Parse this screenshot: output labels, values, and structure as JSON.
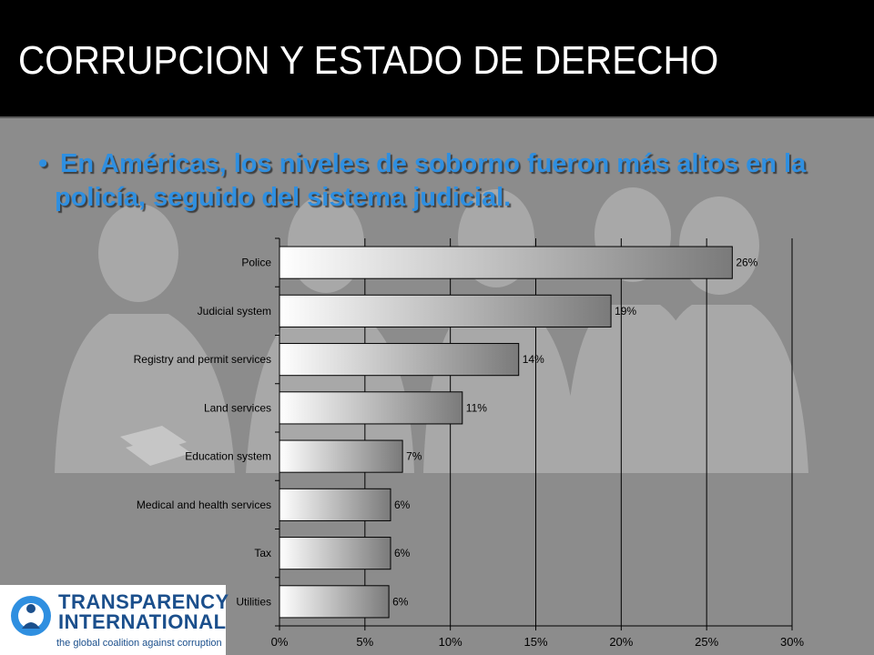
{
  "slide": {
    "title": "CORRUPCION Y ESTADO DE DERECHO",
    "bullet_symbol": "•",
    "bullet_text": "En Américas, los niveles de soborno fueron más altos en la policía, seguido del sistema judicial."
  },
  "logo": {
    "line1": "TRANSPARENCY",
    "line2": "INTERNATIONAL",
    "tagline": "the global coalition against corruption"
  },
  "colors": {
    "title_bar": "#000000",
    "background": "#8c8c8c",
    "bullet_text": "#2f8fe0",
    "bar_light": "#ffffff",
    "bar_dark": "#7a7a7a",
    "logo_blue": "#1b4f8c"
  },
  "chart_data": {
    "type": "bar",
    "orientation": "horizontal",
    "categories": [
      "Police",
      "Judicial system",
      "Registry and permit services",
      "Land services",
      "Education system",
      "Medical and health services",
      "Tax",
      "Utilities"
    ],
    "values": [
      26.5,
      19.4,
      14.0,
      10.7,
      7.2,
      6.5,
      6.5,
      6.4
    ],
    "data_labels": [
      "26%",
      "19%",
      "14%",
      "11%",
      "7%",
      "6%",
      "6%",
      "6%"
    ],
    "x_ticks": [
      0,
      5,
      10,
      15,
      20,
      25,
      30
    ],
    "x_tick_labels": [
      "0%",
      "5%",
      "10%",
      "15%",
      "20%",
      "25%",
      "30%"
    ],
    "xlim": [
      0,
      30
    ],
    "grid": "vertical"
  }
}
